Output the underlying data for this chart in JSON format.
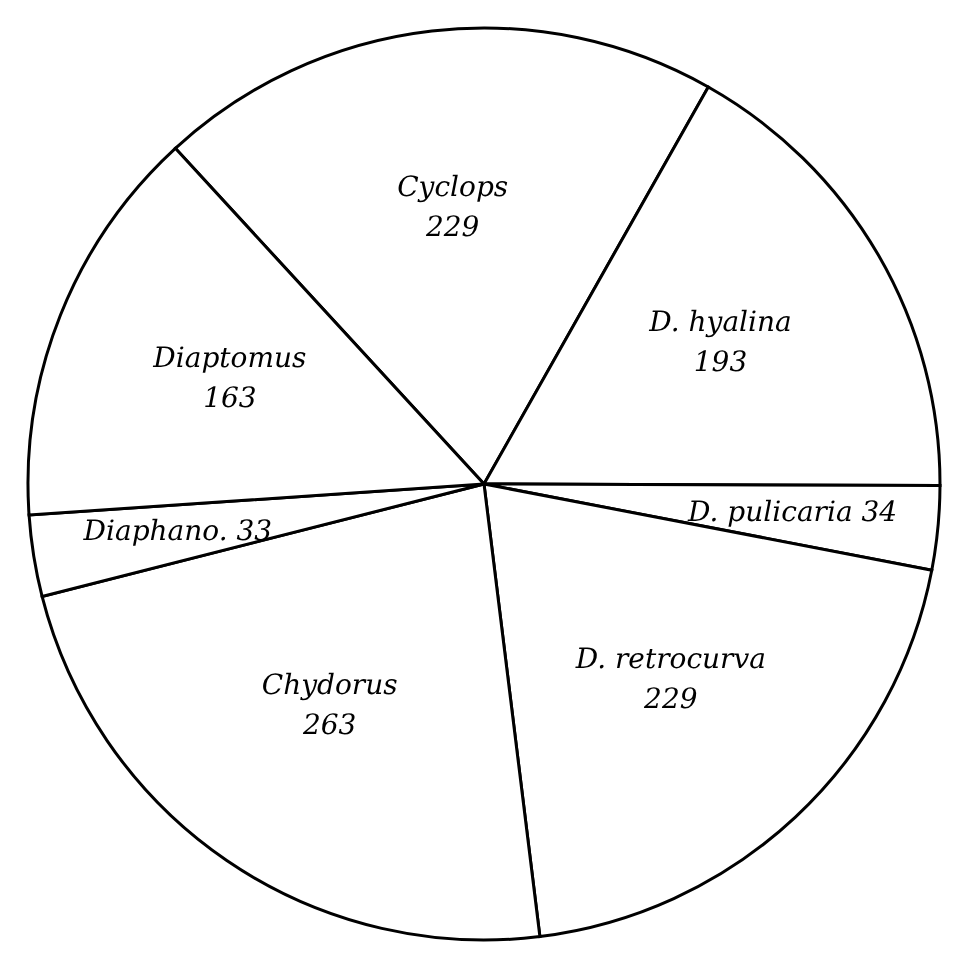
{
  "chart_data": {
    "type": "pie",
    "categories": [
      "Cyclops",
      "D. hyalina",
      "D. pulicaria",
      "D. retrocurva",
      "Chydorus",
      "Diaphano.",
      "Diaptomus"
    ],
    "values": [
      229,
      193,
      34,
      229,
      263,
      33,
      163
    ],
    "colors": [
      "#ffffff",
      "#ffffff",
      "#ffffff",
      "#ffffff",
      "#ffffff",
      "#ffffff",
      "#ffffff"
    ],
    "data_labels": true
  }
}
